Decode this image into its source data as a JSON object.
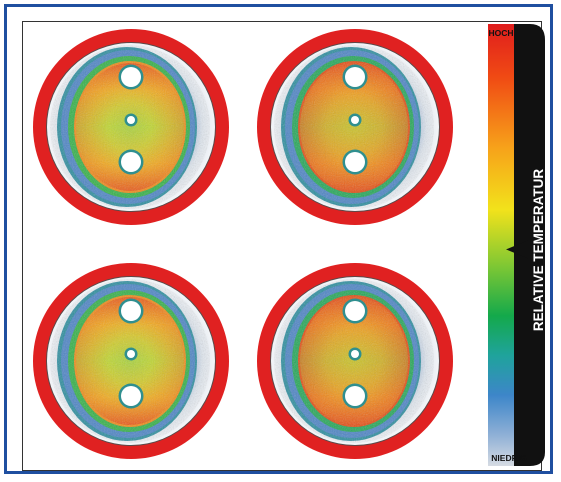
{
  "legend": {
    "high_label": "HOCH",
    "low_label": "NIEDRIG",
    "axis_label": "RELATIVE TEMPERATUR",
    "indicator_level": 0.49,
    "gradient_colors": [
      "#e01d1d",
      "#f04a14",
      "#f7a21a",
      "#f2e21b",
      "#7cc734",
      "#14a94b",
      "#1fa39c",
      "#3d86c9",
      "#8fb0d6",
      "#d6dbe3"
    ]
  },
  "thermograms": [
    {
      "id": "top-left",
      "pattern": "uniform"
    },
    {
      "id": "top-right",
      "pattern": "edge-heavy"
    },
    {
      "id": "bottom-left",
      "pattern": "uniform"
    },
    {
      "id": "bottom-right",
      "pattern": "edge-heavy"
    }
  ],
  "colors": {
    "frame_border": "#1f4fa0",
    "outer_ring": "#e02121",
    "halo": "#dfe6ee",
    "cool_band": "#3d86c9",
    "warm": "#f2c21b",
    "hot": "#e54a17",
    "mid": "#9acd38"
  }
}
